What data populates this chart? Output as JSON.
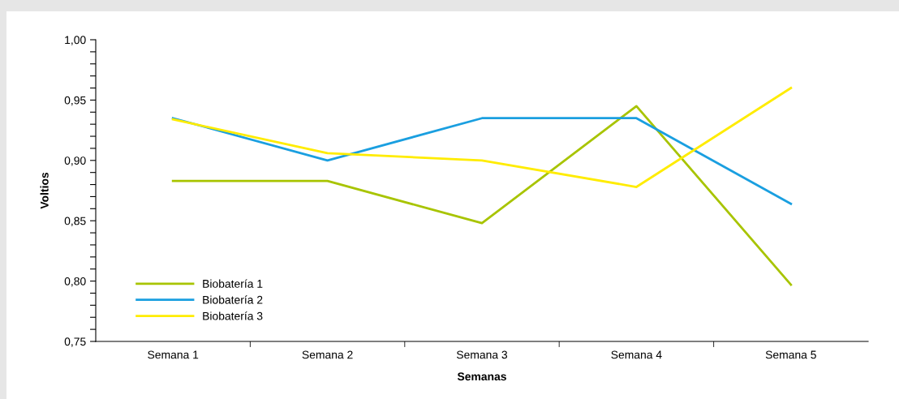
{
  "chart_data": {
    "type": "line",
    "xlabel": "Semanas",
    "ylabel": "Voltios",
    "categories": [
      "Semana 1",
      "Semana 2",
      "Semana 3",
      "Semana 4",
      "Semana 5"
    ],
    "series": [
      {
        "name": "Biobatería 1",
        "color": "#a8c400",
        "values": [
          0.883,
          0.883,
          0.848,
          0.945,
          0.797
        ]
      },
      {
        "name": "Biobatería 2",
        "color": "#1a9fe0",
        "values": [
          0.935,
          0.9,
          0.935,
          0.935,
          0.864
        ]
      },
      {
        "name": "Biobatería 3",
        "color": "#ffec00",
        "values": [
          0.934,
          0.906,
          0.9,
          0.878,
          0.96
        ]
      }
    ],
    "ylim": [
      0.75,
      1.0
    ],
    "yticks": [
      {
        "value": 0.75,
        "label": "0,75"
      },
      {
        "value": 0.76,
        "label": null
      },
      {
        "value": 0.77,
        "label": null
      },
      {
        "value": 0.78,
        "label": null
      },
      {
        "value": 0.79,
        "label": null
      },
      {
        "value": 0.8,
        "label": "0,80"
      },
      {
        "value": 0.81,
        "label": null
      },
      {
        "value": 0.82,
        "label": null
      },
      {
        "value": 0.83,
        "label": null
      },
      {
        "value": 0.84,
        "label": null
      },
      {
        "value": 0.85,
        "label": "0,85"
      },
      {
        "value": 0.86,
        "label": null
      },
      {
        "value": 0.87,
        "label": null
      },
      {
        "value": 0.88,
        "label": null
      },
      {
        "value": 0.89,
        "label": null
      },
      {
        "value": 0.9,
        "label": "0,90"
      },
      {
        "value": 0.91,
        "label": null
      },
      {
        "value": 0.92,
        "label": null
      },
      {
        "value": 0.93,
        "label": null
      },
      {
        "value": 0.94,
        "label": null
      },
      {
        "value": 0.95,
        "label": "0,95"
      },
      {
        "value": 0.96,
        "label": null
      },
      {
        "value": 0.97,
        "label": null
      },
      {
        "value": 0.98,
        "label": null
      },
      {
        "value": 0.99,
        "label": null
      },
      {
        "value": 1.0,
        "label": "1,00"
      }
    ],
    "grid": false,
    "legend": "bottom left",
    "marker": "none",
    "line_style": "solid"
  }
}
